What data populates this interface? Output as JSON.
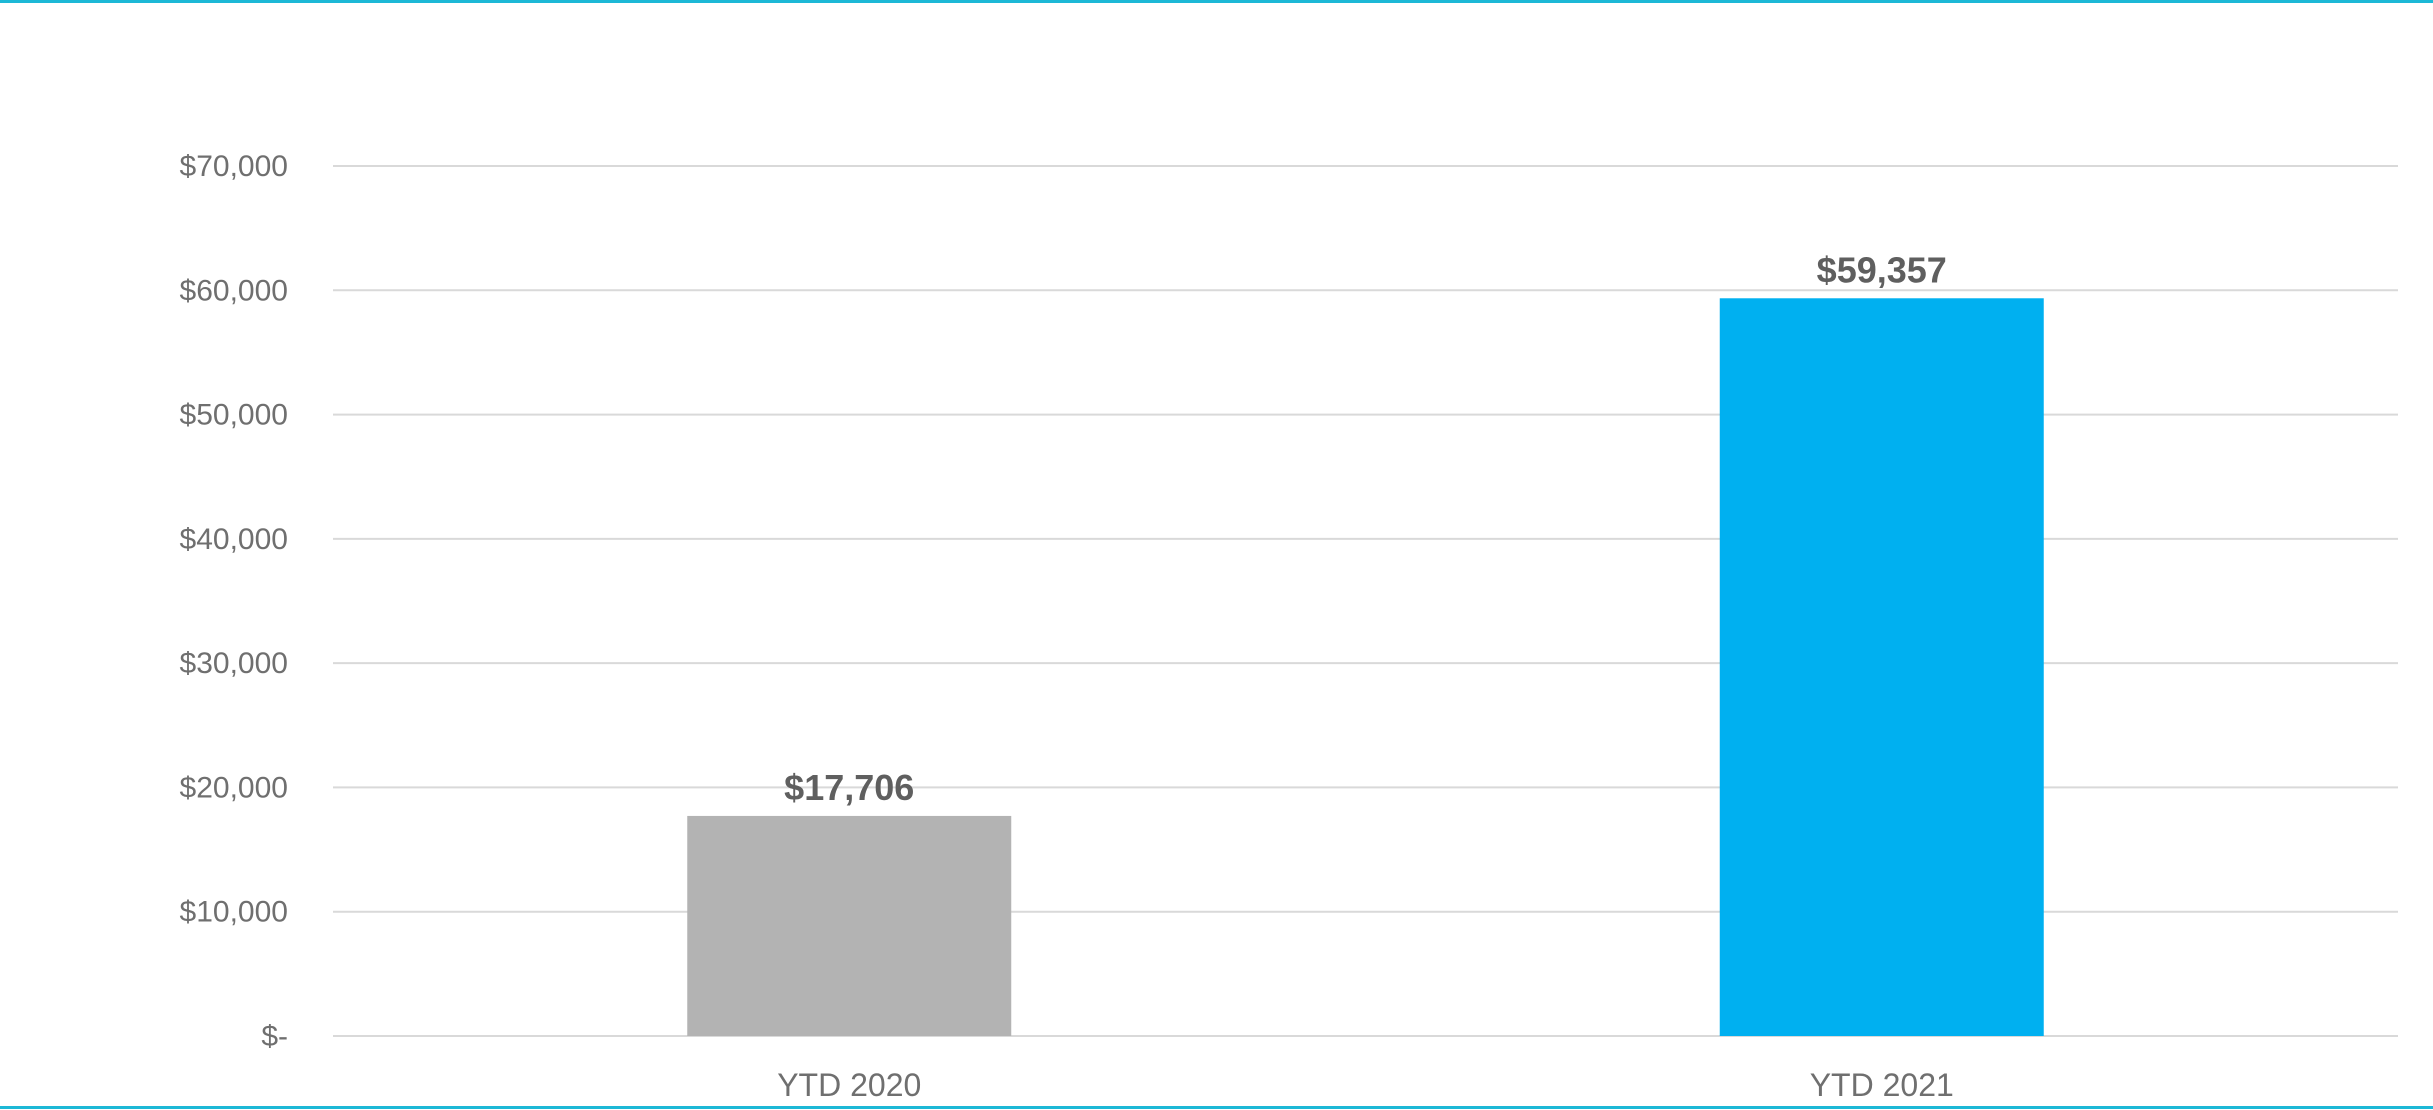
{
  "chart_data": {
    "type": "bar",
    "categories": [
      "YTD 2020",
      "YTD 2021"
    ],
    "values": [
      17706,
      59357
    ],
    "value_labels": [
      "$17,706",
      "$59,357"
    ],
    "colors": [
      "#b3b3b3",
      "#00b0f0"
    ],
    "ylim": [
      0,
      70000
    ],
    "y_ticks": [
      0,
      10000,
      20000,
      30000,
      40000,
      50000,
      60000,
      70000
    ],
    "y_tick_labels": [
      "$-",
      "$10,000",
      "$20,000",
      "$30,000",
      "$40,000",
      "$50,000",
      "$60,000",
      "$70,000"
    ],
    "grid": true,
    "legend": "none",
    "title": "",
    "xlabel": "",
    "ylabel": ""
  },
  "style": {
    "frame_color": "#1cb8d6",
    "grid_color": "#d9d9d9"
  }
}
